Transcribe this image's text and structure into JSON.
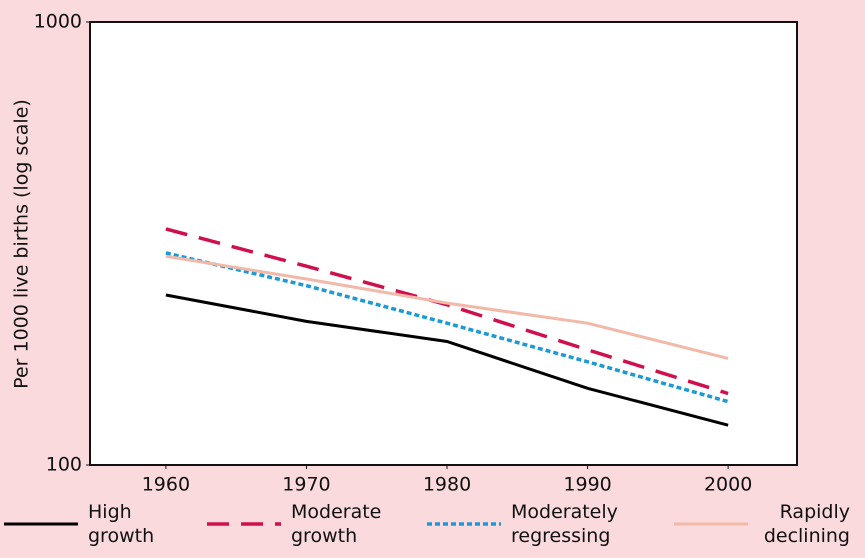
{
  "chart_data": {
    "type": "line",
    "ylabel": "Per 1000 live births (log scale)",
    "x": [
      1960,
      1970,
      1980,
      1990,
      2000
    ],
    "xlim": [
      1954.6,
      2004.9
    ],
    "xticks": [
      1960,
      1970,
      1980,
      1990,
      2000
    ],
    "ylim": [
      100,
      1000
    ],
    "yticks": [
      100,
      1000
    ],
    "y_log_scale": true,
    "grid": false,
    "legend_position": "bottom",
    "series": [
      {
        "name": "High growth",
        "color": "#000000",
        "dash": "solid",
        "values": [
          242,
          211,
          190,
          149,
          123
        ]
      },
      {
        "name": "Moderate growth",
        "color": "#d0104c",
        "dash": "dashed",
        "values": [
          341,
          281,
          230,
          182,
          145
        ]
      },
      {
        "name": "Moderately regressing",
        "color": "#1b9ad6",
        "dash": "dotted",
        "values": [
          301,
          254,
          209,
          171,
          139
        ]
      },
      {
        "name": "Rapidly declining",
        "color": "#f2b8a8",
        "dash": "solid",
        "values": [
          296,
          263,
          232,
          209,
          174
        ]
      }
    ]
  }
}
